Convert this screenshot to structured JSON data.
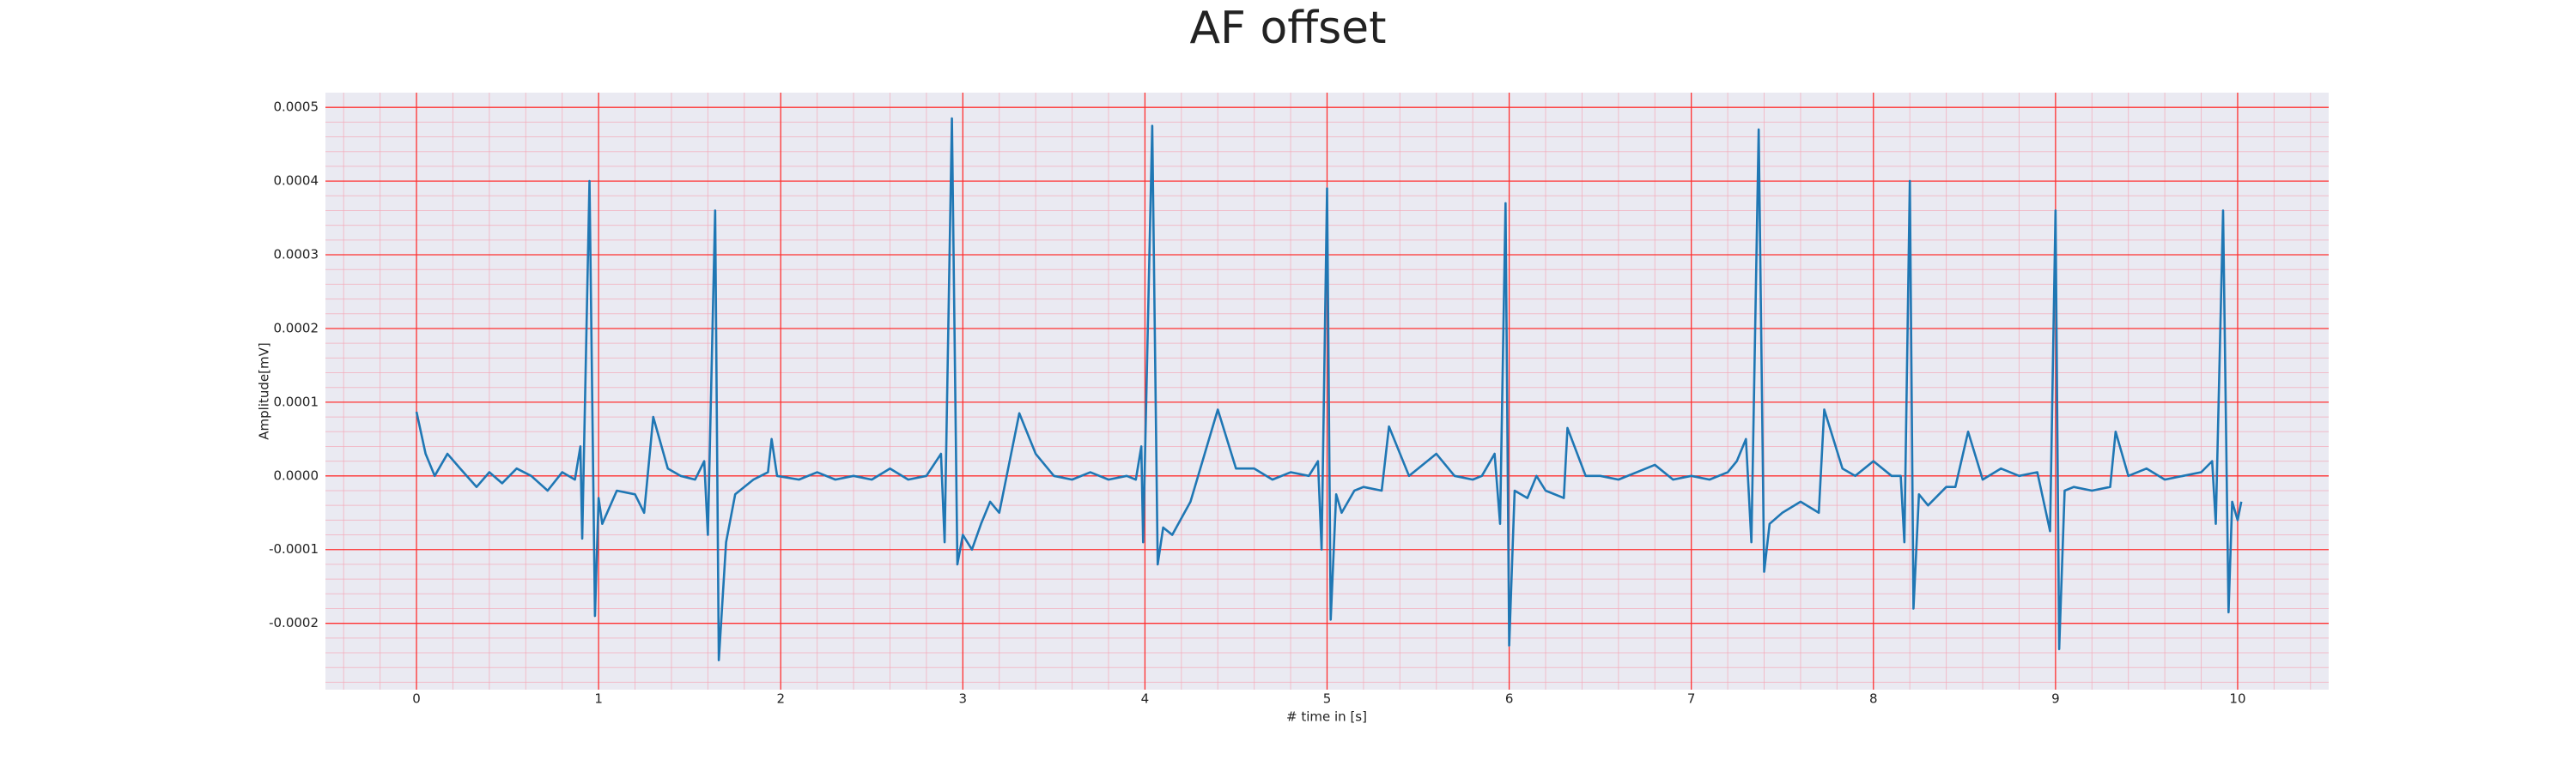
{
  "chart_data": {
    "type": "line",
    "title": "AF offset",
    "xlabel": "# time in [s]",
    "ylabel": "Amplitude[mV]",
    "xlim": [
      -0.5,
      10.5
    ],
    "ylim": [
      -0.00029,
      0.00052
    ],
    "xticks": [
      0,
      1,
      2,
      3,
      4,
      5,
      6,
      7,
      8,
      9,
      10
    ],
    "yticks": [
      -0.0002,
      -0.0001,
      {
        "value": 0,
        "label": "0.0000"
      },
      0.0001,
      0.0002,
      0.0003,
      0.0004,
      0.0005
    ],
    "grid": true,
    "minor_grid": true,
    "x": [
      0,
      0.05,
      0.1,
      0.17,
      0.24,
      0.33,
      0.4,
      0.47,
      0.55,
      0.63,
      0.72,
      0.8,
      0.87,
      0.9,
      0.91,
      0.95,
      0.98,
      1.0,
      1.02,
      1.1,
      1.2,
      1.25,
      1.3,
      1.38,
      1.45,
      1.53,
      1.58,
      1.6,
      1.64,
      1.66,
      1.7,
      1.75,
      1.85,
      1.93,
      1.95,
      1.98,
      2.1,
      2.2,
      2.3,
      2.4,
      2.5,
      2.6,
      2.7,
      2.8,
      2.88,
      2.9,
      2.94,
      2.97,
      3.0,
      3.05,
      3.1,
      3.15,
      3.2,
      3.31,
      3.4,
      3.5,
      3.6,
      3.7,
      3.8,
      3.9,
      3.95,
      3.98,
      3.99,
      4.04,
      4.07,
      4.1,
      4.15,
      4.25,
      4.4,
      4.5,
      4.6,
      4.7,
      4.8,
      4.9,
      4.95,
      4.97,
      5.0,
      5.02,
      5.05,
      5.08,
      5.15,
      5.2,
      5.3,
      5.34,
      5.45,
      5.5,
      5.6,
      5.7,
      5.8,
      5.85,
      5.92,
      5.95,
      5.98,
      6.0,
      6.03,
      6.1,
      6.15,
      6.2,
      6.3,
      6.32,
      6.42,
      6.5,
      6.6,
      6.7,
      6.8,
      6.9,
      7.0,
      7.1,
      7.2,
      7.25,
      7.3,
      7.33,
      7.37,
      7.4,
      7.43,
      7.5,
      7.6,
      7.7,
      7.73,
      7.83,
      7.9,
      8.0,
      8.1,
      8.15,
      8.17,
      8.2,
      8.22,
      8.25,
      8.3,
      8.4,
      8.45,
      8.52,
      8.6,
      8.7,
      8.8,
      8.9,
      8.97,
      9.0,
      9.02,
      9.05,
      9.1,
      9.2,
      9.3,
      9.33,
      9.4,
      9.5,
      9.6,
      9.7,
      9.8,
      9.86,
      9.88,
      9.92,
      9.95,
      9.97,
      10.0,
      10.02
    ],
    "series": [
      {
        "color": "#1f77b4",
        "values": [
          8.7e-05,
          3e-05,
          0,
          3e-05,
          1e-05,
          -1.5e-05,
          5e-06,
          -1e-05,
          1e-05,
          0,
          -2e-05,
          5e-06,
          -5e-06,
          4e-05,
          -8.5e-05,
          0.0004,
          -0.00019,
          -3e-05,
          -6.5e-05,
          -2e-05,
          -2.5e-05,
          -5e-05,
          8e-05,
          1e-05,
          0,
          -5e-06,
          2e-05,
          -8e-05,
          0.00036,
          -0.00025,
          -9e-05,
          -2.5e-05,
          -5e-06,
          5e-06,
          5e-05,
          0,
          -5e-06,
          5e-06,
          -5e-06,
          0,
          -5e-06,
          1e-05,
          -5e-06,
          0,
          3e-05,
          -9e-05,
          0.000485,
          -0.00012,
          -8e-05,
          -0.0001,
          -6.5e-05,
          -3.5e-05,
          -5e-05,
          8.5e-05,
          3e-05,
          0,
          -5e-06,
          5e-06,
          -5e-06,
          0,
          -5e-06,
          4e-05,
          -9e-05,
          0.000475,
          -0.00012,
          -7e-05,
          -8e-05,
          -3.5e-05,
          9e-05,
          1e-05,
          1e-05,
          -5e-06,
          5e-06,
          0,
          2e-05,
          -0.0001,
          0.00039,
          -0.000195,
          -2.5e-05,
          -5e-05,
          -2e-05,
          -1.5e-05,
          -2e-05,
          6.7e-05,
          0,
          1e-05,
          3e-05,
          0,
          -5e-06,
          0,
          3e-05,
          -6.5e-05,
          0.00037,
          -0.00023,
          -2e-05,
          -3e-05,
          0,
          -2e-05,
          -3e-05,
          6.5e-05,
          0,
          0,
          -5e-06,
          5e-06,
          1.5e-05,
          -5e-06,
          0,
          -5e-06,
          5e-06,
          2e-05,
          5e-05,
          -9e-05,
          0.00047,
          -0.00013,
          -6.5e-05,
          -5e-05,
          -3.5e-05,
          -5e-05,
          9e-05,
          1e-05,
          0,
          2e-05,
          0,
          0,
          -9e-05,
          0.0004,
          -0.00018,
          -2.5e-05,
          -4e-05,
          -1.5e-05,
          -1.5e-05,
          6e-05,
          -5e-06,
          1e-05,
          0,
          5e-06,
          -7.5e-05,
          0.00036,
          -0.000235,
          -2e-05,
          -1.5e-05,
          -2e-05,
          -1.5e-05,
          6e-05,
          0,
          1e-05,
          -5e-06,
          0,
          5e-06,
          2e-05,
          -6.5e-05,
          0.00036,
          -0.000185,
          -3.5e-05,
          -6e-05,
          -3.5e-05
        ]
      }
    ]
  }
}
